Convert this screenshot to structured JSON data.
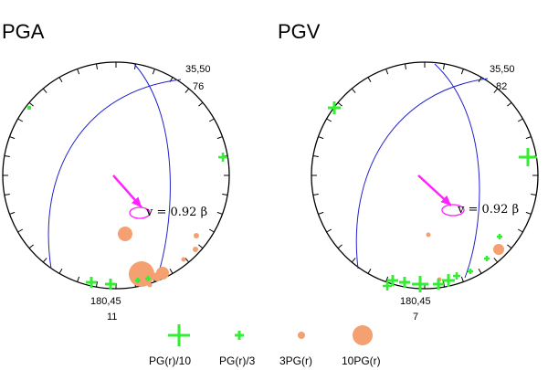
{
  "panels": [
    {
      "title": "PGA",
      "top_label_strike_dip": "35,50",
      "top_label_count": "76",
      "bottom_label_strike_dip": "180,45",
      "bottom_label_count": "11",
      "velocity_label": "v = 0.92 β"
    },
    {
      "title": "PGV",
      "top_label_strike_dip": "35,50",
      "top_label_count": "82",
      "bottom_label_strike_dip": "180,45",
      "bottom_label_count": "7",
      "velocity_label": "v = 0.92 β"
    }
  ],
  "legend": [
    {
      "label": "PG(r)/10",
      "symbol": "cross",
      "size": "large",
      "color": "#33ee33"
    },
    {
      "label": "PG(r)/3",
      "symbol": "cross",
      "size": "small",
      "color": "#33ee33"
    },
    {
      "label": "3PG(r)",
      "symbol": "circle",
      "size": "small",
      "color": "#f4a070"
    },
    {
      "label": "10PG(r)",
      "symbol": "circle",
      "size": "large",
      "color": "#f4a070"
    }
  ],
  "colors": {
    "plane_lines": "#2222cc",
    "rupture_arrow": "#ff22ff",
    "positive_cross": "#33ee33",
    "negative_circle": "#f4a070",
    "outline": "#000000"
  }
}
